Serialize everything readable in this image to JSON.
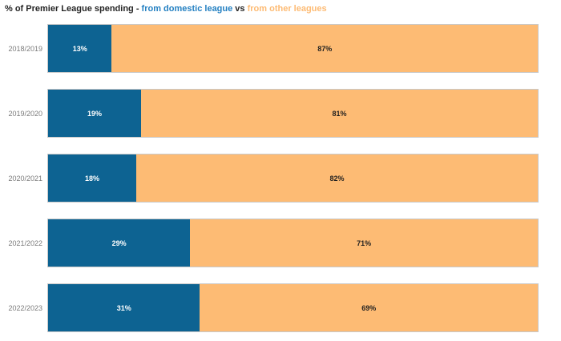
{
  "title": {
    "prefix": "% of Premier League spending - ",
    "domestic_label": "from domestic league",
    "vs": " vs ",
    "other_label": "from other leagues"
  },
  "colors": {
    "domestic_bar": "#0d6392",
    "other_bar": "#fdbb74",
    "title_domestic_text": "#2480c2",
    "title_other_text": "#fdbb74",
    "title_text": "#252525",
    "category_label_text": "#7a7a7a",
    "bar_border": "#c9c9c9",
    "value_on_domestic": "#ffffff",
    "value_on_other": "#1f1f1f"
  },
  "chart_data": {
    "type": "bar",
    "orientation": "horizontal-stacked",
    "title": "% of Premier League spending - from domestic league vs from other leagues",
    "categories": [
      "2018/2019",
      "2019/2020",
      "2020/2021",
      "2021/2022",
      "2022/2023"
    ],
    "series": [
      {
        "name": "from domestic league",
        "color": "#0d6392",
        "values": [
          13,
          19,
          18,
          29,
          31
        ]
      },
      {
        "name": "from other leagues",
        "color": "#fdbb74",
        "values": [
          87,
          81,
          82,
          71,
          69
        ]
      }
    ],
    "value_suffix": "%",
    "xlim": [
      0,
      100
    ],
    "grid": false,
    "xlabel": "",
    "ylabel": "",
    "legend_position": "in-title"
  }
}
